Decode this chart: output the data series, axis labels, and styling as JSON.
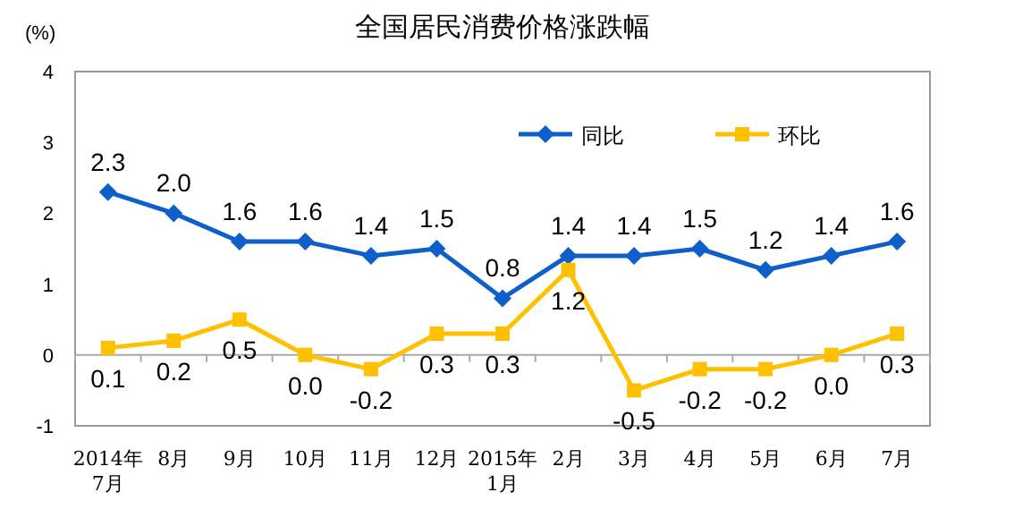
{
  "chart_data": {
    "type": "line",
    "title": "全国居民消费价格涨跌幅",
    "ylabel": "(%)",
    "categories": [
      "2014年\n7月",
      "8月",
      "9月",
      "10月",
      "11月",
      "12月",
      "2015年\n1月",
      "2月",
      "3月",
      "4月",
      "5月",
      "6月",
      "7月"
    ],
    "series": [
      {
        "name": "同比",
        "color": "#0f5fcb",
        "marker": "diamond",
        "values": [
          2.3,
          2.0,
          1.6,
          1.6,
          1.4,
          1.5,
          0.8,
          1.4,
          1.4,
          1.5,
          1.2,
          1.4,
          1.6
        ],
        "value_labels": [
          "2.3",
          "2.0",
          "1.6",
          "1.6",
          "1.4",
          "1.5",
          "0.8",
          "1.4",
          "1.4",
          "1.5",
          "1.2",
          "1.4",
          "1.6"
        ]
      },
      {
        "name": "环比",
        "color": "#ffc000",
        "marker": "square",
        "values": [
          0.1,
          0.2,
          0.5,
          0.0,
          -0.2,
          0.3,
          0.3,
          1.2,
          -0.5,
          -0.2,
          -0.2,
          0.0,
          0.3
        ],
        "value_labels": [
          "0.1",
          "0.2",
          "0.5",
          "0.0",
          "-0.2",
          "0.3",
          "0.3",
          "1.2",
          "-0.5",
          "-0.2",
          "-0.2",
          "0.0",
          "0.3"
        ]
      }
    ],
    "ylim": [
      -1,
      4
    ],
    "yticks": [
      -1,
      0,
      1,
      2,
      3,
      4
    ],
    "legend": "top right"
  }
}
